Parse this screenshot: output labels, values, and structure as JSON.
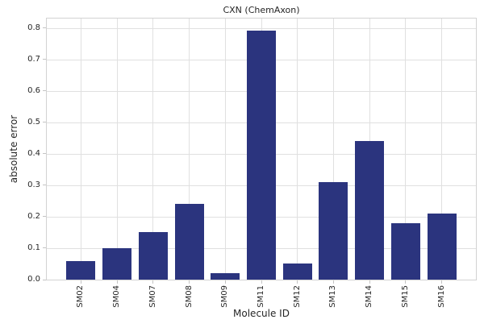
{
  "figure": {
    "background": "#ffffff"
  },
  "colors": {
    "bar": "#2b347e",
    "gridline": "#e0e0e0",
    "spine": "#d2d2d2",
    "tick_mark": "#c4c4c4",
    "text": "#262626"
  },
  "chart_data": {
    "type": "bar",
    "title": "CXN (ChemAxon)",
    "xlabel": "Molecule ID",
    "ylabel": "absolute error",
    "categories": [
      "SM02",
      "SM04",
      "SM07",
      "SM08",
      "SM09",
      "SM11",
      "SM12",
      "SM13",
      "SM14",
      "SM15",
      "SM16"
    ],
    "values": [
      0.06,
      0.1,
      0.15,
      0.24,
      0.02,
      0.79,
      0.05,
      0.31,
      0.44,
      0.18,
      0.21
    ],
    "yticks": [
      0.0,
      0.1,
      0.2,
      0.3,
      0.4,
      0.5,
      0.6,
      0.7,
      0.8
    ],
    "ytick_labels": [
      "0.0",
      "0.1",
      "0.2",
      "0.3",
      "0.4",
      "0.5",
      "0.6",
      "0.7",
      "0.8"
    ],
    "ylim": [
      0,
      0.8295
    ],
    "grid": true,
    "legend": "none",
    "x_tick_label_rotation_deg": 90
  }
}
